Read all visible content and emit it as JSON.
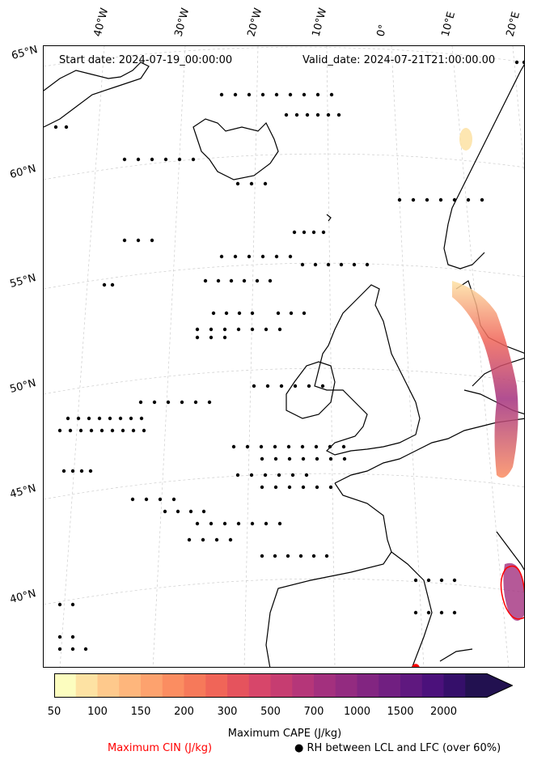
{
  "header": {
    "start_date": "Start date: 2024-07-19_00:00:00",
    "valid_date": "Valid_date: 2024-07-21T21:00:00.00"
  },
  "longitude_labels": [
    "40°W",
    "30°W",
    "20°W",
    "10°W",
    "0°",
    "10°E",
    "20°E"
  ],
  "latitude_labels": [
    "65°N",
    "60°N",
    "55°N",
    "50°N",
    "45°N",
    "40°N"
  ],
  "colorbar": {
    "label": "Maximum CAPE (J/kg)",
    "tick_labels": [
      "50",
      "100",
      "150",
      "200",
      "300",
      "500",
      "700",
      "1000",
      "1500",
      "2000"
    ],
    "colors": [
      "#fcfdbf",
      "#fde2a3",
      "#fec98c",
      "#feb67c",
      "#fda26e",
      "#fb8d61",
      "#f6795a",
      "#f06558",
      "#e5535d",
      "#d7466a",
      "#c63d71",
      "#b53679",
      "#a3307e",
      "#932b80",
      "#822581",
      "#711f81",
      "#5f187f",
      "#4b117b",
      "#350f6a",
      "#221150"
    ]
  },
  "legend": {
    "cin_label": "Maximum CIN (J/kg)",
    "cin_color": "#ff0000",
    "rh_symbol": "●",
    "rh_label": "RH between LCL and LFC (over 60%)"
  }
}
